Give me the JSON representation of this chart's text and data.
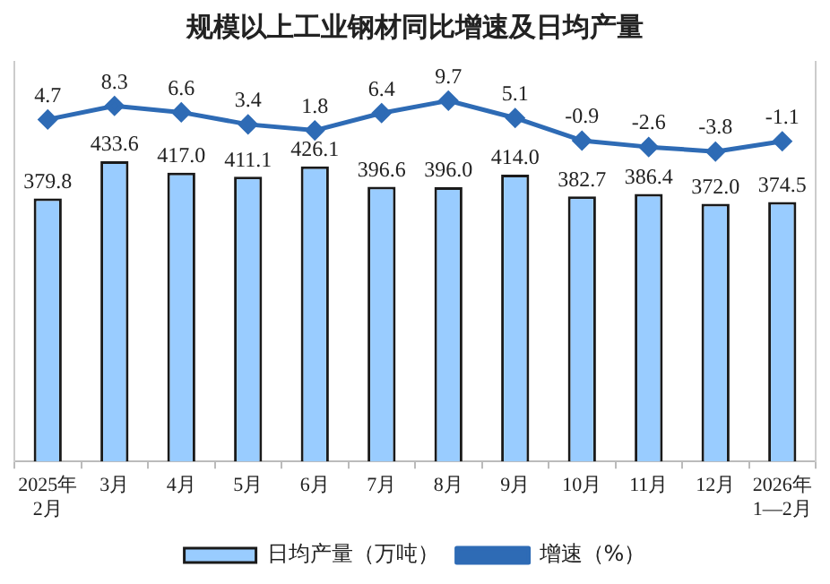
{
  "chart_data": {
    "type": "bar",
    "title": "规模以上工业钢材同比增速及日均产量",
    "categories": [
      "2025年\n2月",
      "3月",
      "4月",
      "5月",
      "6月",
      "7月",
      "8月",
      "9月",
      "10月",
      "11月",
      "12月",
      "2026年\n1—2月"
    ],
    "series": [
      {
        "name": "日均产量（万吨）",
        "color": "#99ccff",
        "values": [
          379.8,
          433.6,
          417.0,
          411.1,
          426.1,
          396.6,
          396.0,
          414.0,
          382.7,
          386.4,
          372.0,
          374.5
        ],
        "value_labels": [
          "379.8",
          "433.6",
          "417.0",
          "411.1",
          "426.1",
          "396.6",
          "396.0",
          "414.0",
          "382.7",
          "386.4",
          "372.0",
          "374.5"
        ]
      },
      {
        "name": "增速（%）",
        "type": "line",
        "axis": "y2",
        "color": "#2e6bb5",
        "values": [
          4.7,
          8.3,
          6.6,
          3.4,
          1.8,
          6.4,
          9.7,
          5.1,
          -0.9,
          -2.6,
          -3.8,
          -1.1
        ],
        "value_labels": [
          "4.7",
          "8.3",
          "6.6",
          "3.4",
          "1.8",
          "6.4",
          "9.7",
          "5.1",
          "-0.9",
          "-2.6",
          "-3.8",
          "-1.1"
        ]
      }
    ],
    "ylim": [
      0,
      577
    ],
    "y2lim": [
      -86,
      20
    ],
    "tick_labels": "x",
    "grid": false,
    "legend": "bottom",
    "marker": "diamond",
    "line_style": "solid"
  }
}
